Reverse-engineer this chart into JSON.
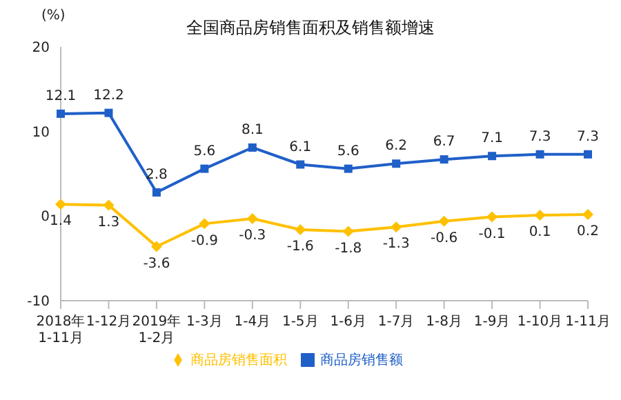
{
  "chart_data": {
    "type": "line",
    "title": "全国商品房销售面积及销售额增速",
    "ylabel": "(%)",
    "categories": [
      "2018年\n1-11月",
      "1-12月",
      "2019年\n1-2月",
      "1-3月",
      "1-4月",
      "1-5月",
      "1-6月",
      "1-7月",
      "1-8月",
      "1-9月",
      "1-10月",
      "1-11月"
    ],
    "series": [
      {
        "name": "商品房销售面积",
        "color": "#ffc000",
        "marker": "diamond",
        "values": [
          1.4,
          1.3,
          -3.6,
          -0.9,
          -0.3,
          -1.6,
          -1.8,
          -1.3,
          -0.6,
          -0.1,
          0.1,
          0.2
        ]
      },
      {
        "name": "商品房销售额",
        "color": "#1f5fc8",
        "marker": "square",
        "values": [
          12.1,
          12.2,
          2.8,
          5.6,
          8.1,
          6.1,
          5.6,
          6.2,
          6.7,
          7.1,
          7.3,
          7.3
        ]
      }
    ],
    "ylim": [
      -10,
      20
    ],
    "yticks": [
      -10,
      0,
      10,
      20
    ],
    "grid": false,
    "legend": "bottom",
    "data_labels": true
  }
}
